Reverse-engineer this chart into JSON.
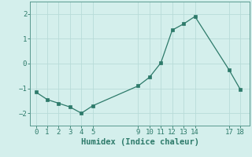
{
  "x": [
    0,
    1,
    2,
    3,
    4,
    5,
    9,
    10,
    11,
    12,
    13,
    14,
    17,
    18
  ],
  "y": [
    -1.15,
    -1.45,
    -1.6,
    -1.75,
    -2.0,
    -1.7,
    -0.9,
    -0.55,
    0.03,
    1.35,
    1.6,
    1.9,
    -0.25,
    -1.05
  ],
  "line_color": "#2d7a6a",
  "marker": "s",
  "marker_size": 2.5,
  "bg_color": "#d4efec",
  "grid_color": "#b8dbd8",
  "tick_color": "#2d7a6a",
  "spine_color": "#5a9a90",
  "xlabel": "Humidex (Indice chaleur)",
  "xlabel_fontsize": 7.5,
  "xticks": [
    0,
    1,
    2,
    3,
    4,
    5,
    9,
    10,
    11,
    12,
    13,
    14,
    17,
    18
  ],
  "yticks": [
    -2,
    -1,
    0,
    1,
    2
  ],
  "ylim": [
    -2.5,
    2.5
  ],
  "xlim": [
    -0.5,
    18.8
  ]
}
